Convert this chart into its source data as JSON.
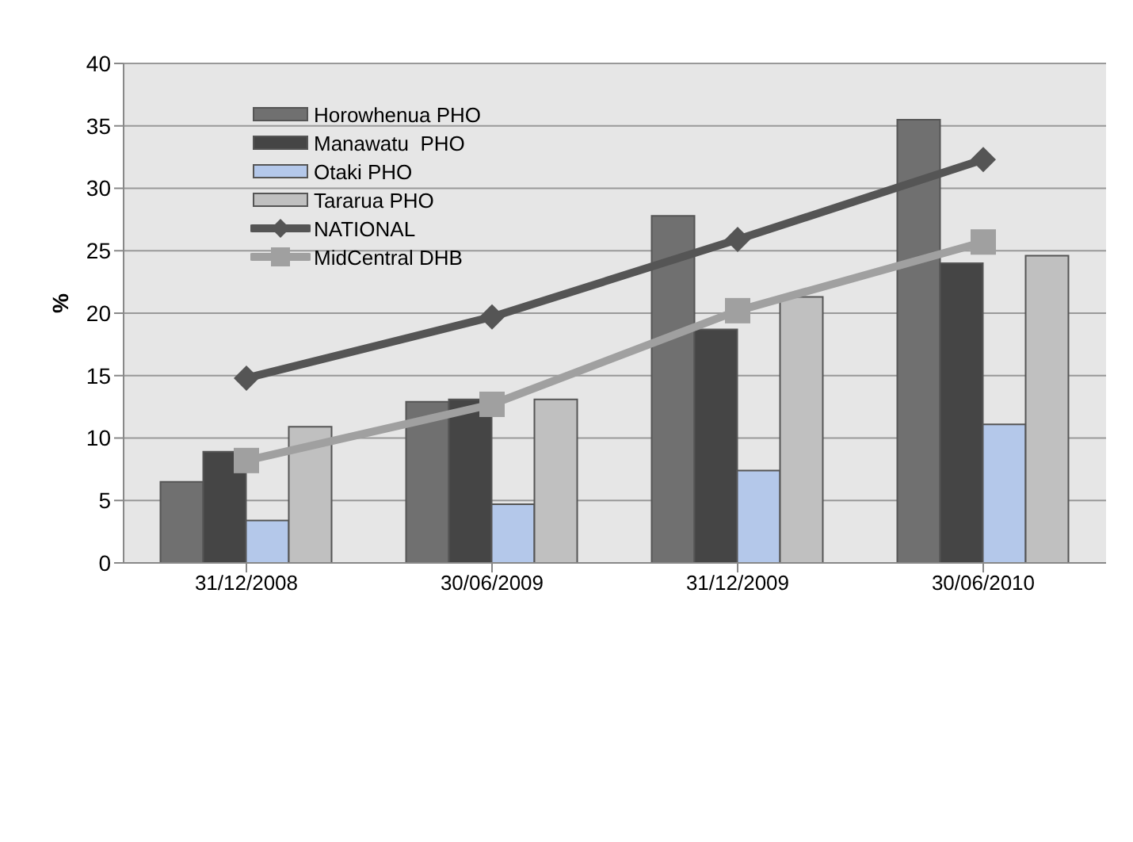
{
  "chart_data": {
    "type": "bar",
    "categories": [
      "31/12/2008",
      "30/06/2009",
      "31/12/2009",
      "30/06/2010"
    ],
    "ylabel": "%",
    "ylim": [
      0,
      40
    ],
    "yticks": [
      0,
      5,
      10,
      15,
      20,
      25,
      30,
      35,
      40
    ],
    "grid": "y",
    "legend": "top left",
    "series": [
      {
        "name": "Horowhenua PHO",
        "color": "#707070",
        "values": [
          6.5,
          12.9,
          27.8,
          35.5
        ]
      },
      {
        "name": "Manawatu  PHO",
        "color": "#454545",
        "values": [
          8.9,
          13.1,
          18.7,
          24.0
        ]
      },
      {
        "name": "Otaki PHO",
        "color": "#b4c8ea",
        "values": [
          3.4,
          4.7,
          7.4,
          11.1
        ]
      },
      {
        "name": "Tararua PHO",
        "color": "#c0c0c0",
        "values": [
          10.9,
          13.1,
          21.3,
          24.6
        ]
      },
      {
        "name": "NATIONAL",
        "type": "line",
        "marker": "diamond",
        "color": "#555555",
        "values": [
          14.8,
          19.7,
          25.9,
          32.3
        ]
      },
      {
        "name": "MidCentral DHB",
        "type": "line",
        "marker": "square",
        "color": "#a0a0a0",
        "values": [
          8.2,
          12.7,
          20.2,
          25.7
        ]
      }
    ]
  }
}
